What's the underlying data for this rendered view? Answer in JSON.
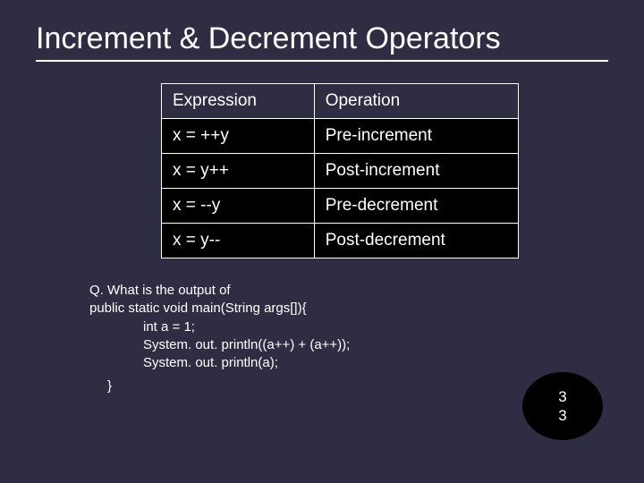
{
  "colors": {
    "background": "#2e2d44",
    "text": "#ffffff",
    "table_row_bg": "#000000",
    "oval_bg": "#000000",
    "underline": "#ffffff",
    "border": "#ffffff"
  },
  "title": "Increment & Decrement Operators",
  "table": {
    "columns": [
      "Expression",
      "Operation"
    ],
    "rows": [
      [
        "x = ++y",
        "Pre-increment"
      ],
      [
        "x = y++",
        "Post-increment"
      ],
      [
        "x = --y",
        "Pre-decrement"
      ],
      [
        "x = y--",
        "Post-decrement"
      ]
    ]
  },
  "question": {
    "line1": "Q. What is the output of",
    "line2": "public static void main(String args[]){",
    "line3": "int a = 1;",
    "line4": "System. out. println((a++) + (a++));",
    "line5": "System. out. println(a);",
    "line6": "}"
  },
  "answer": {
    "line1": "3",
    "line2": "3"
  }
}
